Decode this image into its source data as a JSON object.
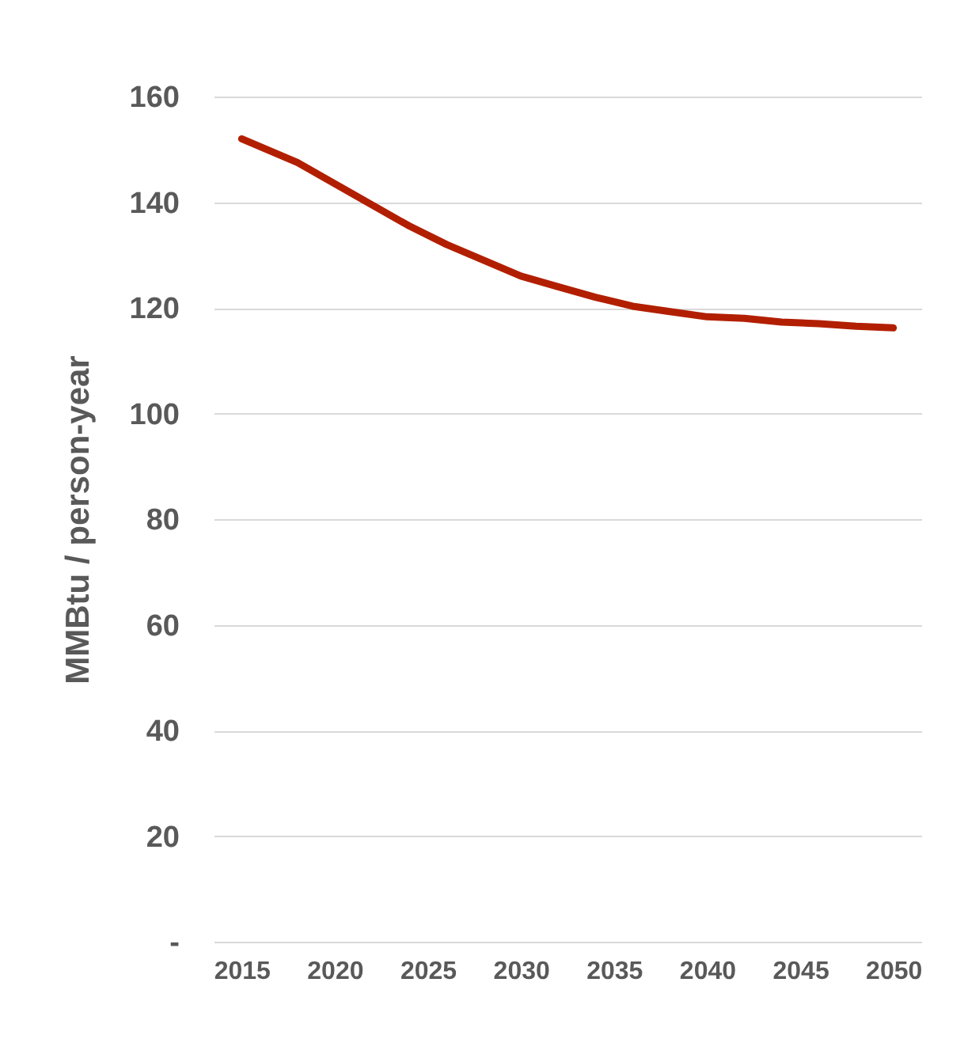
{
  "chart_data": {
    "type": "line",
    "ylabel": "MMBtu / person-year",
    "x": [
      2015,
      2017,
      2018,
      2020,
      2022,
      2024,
      2026,
      2028,
      2030,
      2032,
      2034,
      2036,
      2038,
      2040,
      2042,
      2044,
      2046,
      2048,
      2050
    ],
    "series": [
      {
        "color": "#b21f00",
        "values": [
          152,
          149,
          147.5,
          143.5,
          139.5,
          135.5,
          132,
          129,
          126,
          124,
          122,
          120.3,
          119.3,
          118.3,
          118,
          117.3,
          117,
          116.5,
          116.2
        ]
      }
    ],
    "xlim": [
      2013.5,
      2051.5
    ],
    "xticks": [
      2015,
      2020,
      2025,
      2030,
      2035,
      2040,
      2045,
      2050
    ],
    "ylim": [
      0,
      160
    ],
    "yticks": [
      {
        "value": 0,
        "label": "-"
      },
      20,
      40,
      60,
      80,
      100,
      120,
      140,
      160
    ],
    "grid": "y",
    "line_style": "solid",
    "marker": "none"
  }
}
